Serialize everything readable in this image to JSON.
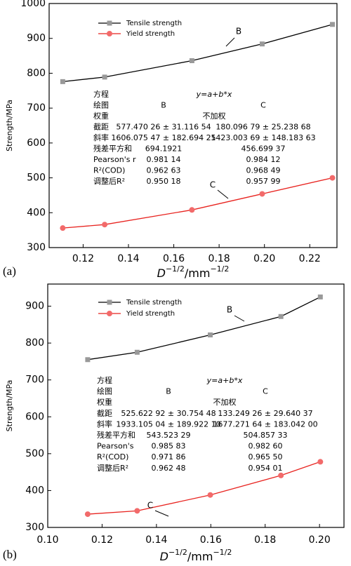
{
  "chart_data": [
    {
      "type": "line",
      "panel_label": "(a)",
      "y_label": "Strength/MPa",
      "x_label": {
        "base": "D",
        "sup": "−1/2",
        "unit": "/mm",
        "unit_sup": "−1/2"
      },
      "x": [
        0.111,
        0.1295,
        0.168,
        0.199,
        0.23
      ],
      "series": [
        {
          "name": "Tensile strength",
          "color": "#000000",
          "marker_color": "#999999",
          "marker": "square",
          "values": [
            776,
            789,
            836,
            884,
            940
          ]
        },
        {
          "name": "Yield strength",
          "color": "#e8231f",
          "marker_color": "#f26a6a",
          "marker": "circle",
          "values": [
            356,
            366,
            408,
            454,
            500
          ]
        }
      ],
      "xlim": [
        0.105,
        0.232
      ],
      "ylim": [
        300,
        1000
      ],
      "xticks": [
        0.12,
        0.14,
        0.16,
        0.18,
        {
          "value": 0.2,
          "label": "0.20"
        },
        0.22
      ],
      "yticks": [
        300,
        400,
        500,
        600,
        700,
        800,
        900,
        1000
      ],
      "annotations": [
        "B",
        "C"
      ],
      "fit_table": {
        "columns": [
          "B",
          "C"
        ],
        "rows": [
          [
            "方程",
            "y=a+b*x"
          ],
          [
            "绘图",
            "B",
            "C"
          ],
          [
            "权重",
            "不加权"
          ],
          [
            "截距",
            "577.470 26 ± 31.116 54",
            "180.096 79 ± 25.238 68"
          ],
          [
            "斜率",
            "1606.075 47 ± 182.694 25",
            "1423.003 69 ± 148.183 63"
          ],
          [
            "残差平方和",
            "694.1921",
            "456.699 37"
          ],
          [
            "Pearson's r",
            "0.981 14",
            "0.984 12"
          ],
          [
            "R²(COD)",
            "0.962 63",
            "0.968 49"
          ],
          [
            "调整后R²",
            "0.950 18",
            "0.957 99"
          ]
        ]
      }
    },
    {
      "type": "line",
      "panel_label": "(b)",
      "y_label": "Strength/MPa",
      "x_label": {
        "base": "D",
        "sup": "−1/2",
        "unit": "/mm",
        "unit_sup": "−1/2"
      },
      "x": [
        0.1147,
        0.1329,
        0.1598,
        0.1858,
        0.2003
      ],
      "series": [
        {
          "name": "Tensile strength",
          "color": "#000000",
          "marker_color": "#999999",
          "marker": "square",
          "values": [
            755,
            775,
            822,
            872,
            925
          ]
        },
        {
          "name": "Yield strength",
          "color": "#e8231f",
          "marker_color": "#f26a6a",
          "marker": "circle",
          "values": [
            336,
            345,
            388,
            441,
            478
          ]
        }
      ],
      "xlim": [
        0.1,
        0.209
      ],
      "ylim": [
        300,
        960
      ],
      "xticks": [
        {
          "value": 0.1,
          "label": "0.10"
        },
        0.12,
        0.14,
        0.16,
        0.18,
        {
          "value": 0.2,
          "label": "0.20"
        }
      ],
      "yticks": [
        300,
        400,
        500,
        600,
        700,
        800,
        900
      ],
      "annotations": [
        "B",
        "C"
      ],
      "fit_table": {
        "columns": [
          "B",
          "C"
        ],
        "rows": [
          [
            "方程",
            "y=a+b*x"
          ],
          [
            "绘图",
            "B",
            "C"
          ],
          [
            "权重",
            "不加权"
          ],
          [
            "截距",
            "525.622 92 ± 30.754 48",
            "133.249 26 ± 29.640 37"
          ],
          [
            "斜率",
            "1933.105 04 ± 189.922 10",
            "1677.271 64 ± 183.042 00"
          ],
          [
            "残差平方和",
            "543.523 29",
            "504.857 33"
          ],
          [
            "Pearson's",
            "0.985 83",
            "0.982 60"
          ],
          [
            "R²(COD)",
            "0.971 86",
            "0.965 50"
          ],
          [
            "调整后R²",
            "0.962 48",
            "0.954 01"
          ]
        ]
      }
    }
  ]
}
